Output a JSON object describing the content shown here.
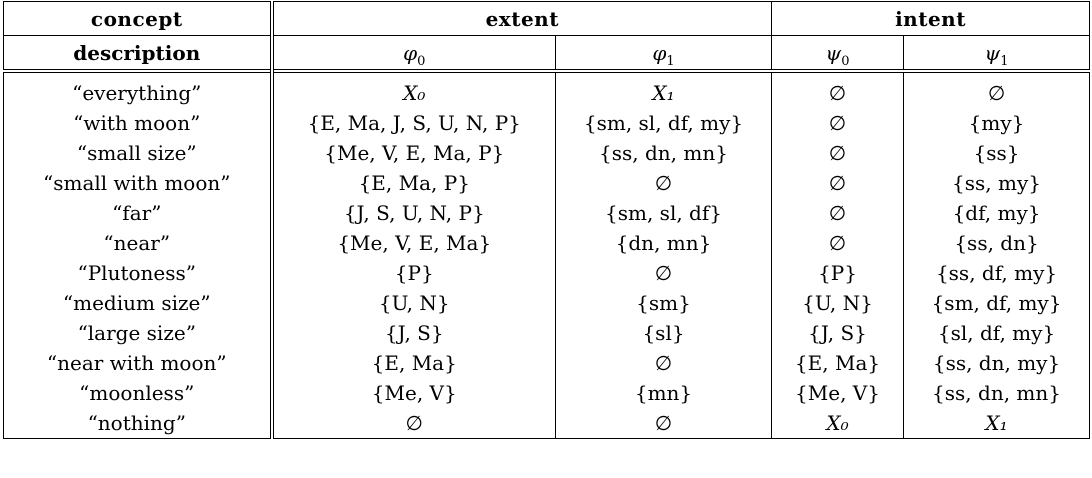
{
  "header": {
    "concept_line1": "concept",
    "concept_line2": "description",
    "extent": "extent",
    "intent": "intent",
    "phi0": {
      "base": "φ",
      "sub": "0"
    },
    "phi1": {
      "base": "φ",
      "sub": "1"
    },
    "psi0": {
      "base": "ψ",
      "sub": "0"
    },
    "psi1": {
      "base": "ψ",
      "sub": "1"
    }
  },
  "rows": [
    {
      "desc": "“everything”",
      "phi0": "X₀",
      "phi1": "X₁",
      "psi0": "∅",
      "psi1": "∅"
    },
    {
      "desc": "“with moon”",
      "phi0": "{E, Ma, J, S, U, N, P}",
      "phi1": "{sm, sl, df, my}",
      "psi0": "∅",
      "psi1": "{my}"
    },
    {
      "desc": "“small size”",
      "phi0": "{Me, V, E, Ma, P}",
      "phi1": "{ss, dn, mn}",
      "psi0": "∅",
      "psi1": "{ss}"
    },
    {
      "desc": "“small with moon”",
      "phi0": "{E, Ma, P}",
      "phi1": "∅",
      "psi0": "∅",
      "psi1": "{ss, my}"
    },
    {
      "desc": "“far”",
      "phi0": "{J, S, U, N, P}",
      "phi1": "{sm, sl, df}",
      "psi0": "∅",
      "psi1": "{df, my}"
    },
    {
      "desc": "“near”",
      "phi0": "{Me, V, E, Ma}",
      "phi1": "{dn, mn}",
      "psi0": "∅",
      "psi1": "{ss, dn}"
    },
    {
      "desc": "“Plutoness”",
      "phi0": "{P}",
      "phi1": "∅",
      "psi0": "{P}",
      "psi1": "{ss, df, my}"
    },
    {
      "desc": "“medium size”",
      "phi0": "{U, N}",
      "phi1": "{sm}",
      "psi0": "{U, N}",
      "psi1": "{sm, df, my}"
    },
    {
      "desc": "“large size”",
      "phi0": "{J, S}",
      "phi1": "{sl}",
      "psi0": "{J, S}",
      "psi1": "{sl, df, my}"
    },
    {
      "desc": "“near with moon”",
      "phi0": "{E, Ma}",
      "phi1": "∅",
      "psi0": "{E, Ma}",
      "psi1": "{ss, dn, my}"
    },
    {
      "desc": "“moonless”",
      "phi0": "{Me, V}",
      "phi1": "{mn}",
      "psi0": "{Me, V}",
      "psi1": "{ss, dn, mn}"
    },
    {
      "desc": "“nothing”",
      "phi0": "∅",
      "phi1": "∅",
      "psi0": "X₀",
      "psi1": "X₁"
    }
  ]
}
